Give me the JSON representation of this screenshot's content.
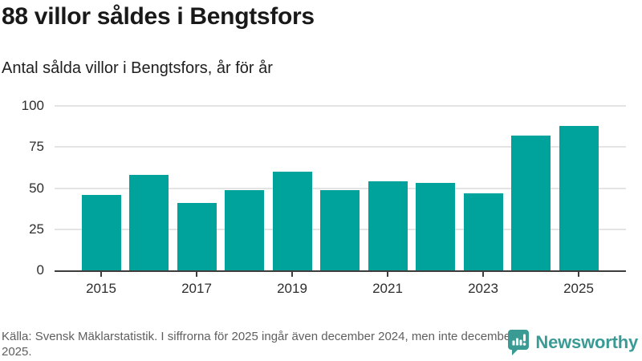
{
  "header": {
    "title": "88 villor såldes i Bengtsfors",
    "subtitle": "Antal sålda villor i Bengtsfors, år för år"
  },
  "chart_data": {
    "type": "bar",
    "title": "88 villor såldes i Bengtsfors",
    "subtitle": "Antal sålda villor i Bengtsfors, år för år",
    "categories": [
      "2015",
      "2016",
      "2017",
      "2018",
      "2019",
      "2020",
      "2021",
      "2022",
      "2023",
      "2024",
      "2025"
    ],
    "values": [
      46,
      58,
      41,
      49,
      60,
      49,
      54,
      53,
      47,
      82,
      88
    ],
    "xlabel": "",
    "ylabel": "",
    "ylim": [
      0,
      100
    ],
    "yticks": [
      0,
      25,
      50,
      75,
      100
    ],
    "xticks": [
      "2015",
      "2017",
      "2019",
      "2021",
      "2023",
      "2025"
    ],
    "grid": true,
    "legend": false,
    "bar_color": "#00a39b"
  },
  "footer": {
    "source_text": "Källa: Svensk Mäklarstatistik. I siffrorna för 2025 ingår även december 2024, men inte december 2025.",
    "logo_text": "Newsworthy",
    "logo_icon": "bar-chart-speech-bubble-icon",
    "logo_color": "#3a9b95"
  },
  "colors": {
    "bar": "#00a39b",
    "axis": "#3d3d3d",
    "gridline": "#e4e4e4",
    "title_text": "#191919",
    "body_text": "#202020",
    "tick_text": "#2e2e2e",
    "source_text": "#5f5f5f",
    "background": "#ffffff"
  }
}
